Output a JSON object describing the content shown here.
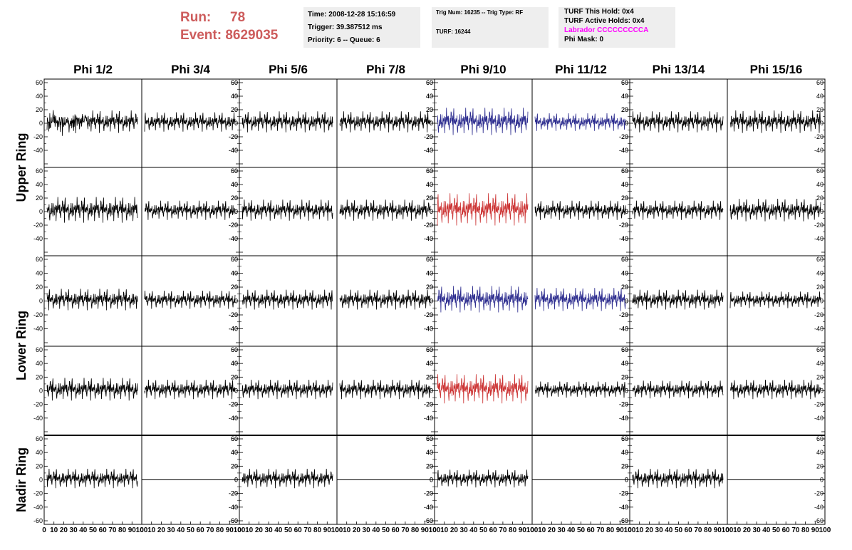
{
  "header": {
    "run_label": "Run:",
    "run_value": "78",
    "event_label": "Event:",
    "event_value": "8629035"
  },
  "info_time": {
    "time": "Time: 2008-12-28 15:16:59",
    "trigger": "Trigger: 39.387512 ms",
    "priority": "Priority: 6 -- Queue: 6"
  },
  "info_trig": {
    "trig": "Trig Num: 16235 -- Trig Type: RF",
    "turf": "TURF: 16244"
  },
  "info_turf": {
    "this_hold": "TURF This Hold: 0x4",
    "active_holds": "TURF Active Holds: 0x4",
    "labrador": "Labrador CCCCCCCCCA",
    "phi_mask": "Phi Mask: 0"
  },
  "colors": {
    "trace_default": "#000000",
    "trace_blue": "#2d2d8f",
    "trace_red": "#cc3333",
    "header_red": "#cd5c5c",
    "labrador_magenta": "#ff00ff"
  },
  "chart_data": {
    "type": "line",
    "columns": [
      "Phi 1/2",
      "Phi 3/4",
      "Phi 5/6",
      "Phi 7/8",
      "Phi 9/10",
      "Phi 11/12",
      "Phi 13/14",
      "Phi 15/16"
    ],
    "rings": [
      "Upper Ring",
      "Lower Ring",
      "Nadir Ring"
    ],
    "rows": [
      {
        "ring": "Upper Ring",
        "color": [
          "default",
          "default",
          "default",
          "default",
          "blue",
          "blue",
          "default",
          "default"
        ],
        "amplitude": [
          14,
          12,
          13,
          13,
          17,
          11,
          13,
          14
        ],
        "flat": [
          false,
          false,
          false,
          false,
          false,
          false,
          false,
          false
        ]
      },
      {
        "ring": "Upper Ring",
        "color": [
          "default",
          "default",
          "default",
          "default",
          "red",
          "default",
          "default",
          "default"
        ],
        "amplitude": [
          16,
          12,
          13,
          13,
          20,
          12,
          12,
          14
        ],
        "flat": [
          false,
          false,
          false,
          false,
          false,
          false,
          false,
          false
        ]
      },
      {
        "ring": "Lower Ring",
        "color": [
          "default",
          "default",
          "default",
          "default",
          "blue",
          "blue",
          "default",
          "default"
        ],
        "amplitude": [
          13,
          11,
          12,
          12,
          16,
          14,
          12,
          10
        ],
        "flat": [
          false,
          false,
          false,
          false,
          false,
          false,
          false,
          false
        ]
      },
      {
        "ring": "Lower Ring",
        "color": [
          "default",
          "default",
          "default",
          "default",
          "red",
          "default",
          "default",
          "default"
        ],
        "amplitude": [
          14,
          12,
          12,
          12,
          18,
          10,
          11,
          12
        ],
        "flat": [
          false,
          false,
          false,
          false,
          false,
          false,
          false,
          false
        ]
      },
      {
        "ring": "Nadir Ring",
        "color": [
          "default",
          "default",
          "default",
          "default",
          "default",
          "default",
          "default",
          "default"
        ],
        "amplitude": [
          12,
          0,
          12,
          0,
          11,
          0,
          12,
          0
        ],
        "flat": [
          false,
          true,
          false,
          true,
          false,
          true,
          false,
          true
        ]
      }
    ],
    "x_ticks": [
      "0",
      "10",
      "20",
      "30",
      "40",
      "50",
      "60",
      "70",
      "80",
      "90",
      "100"
    ],
    "y_ticks": [
      "60",
      "40",
      "20",
      "0",
      "-20",
      "-40",
      "-60"
    ],
    "y_ticks_shown": [
      "60",
      "40",
      "20",
      "0",
      "-20",
      "-40"
    ],
    "xlim": [
      0,
      100
    ],
    "ylim": [
      -60,
      60
    ],
    "samples": 260
  }
}
